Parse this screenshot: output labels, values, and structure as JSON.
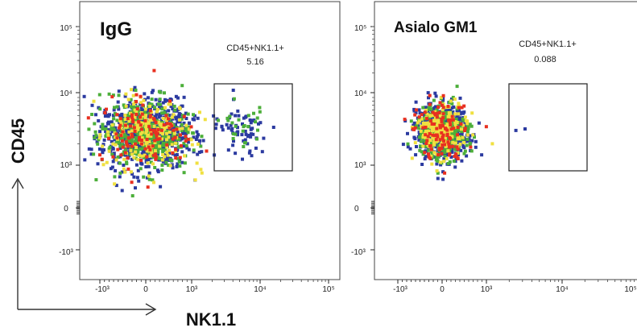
{
  "chart_data": {
    "type": "scatter",
    "xlabel": "NK1.1",
    "ylabel": "CD45",
    "x_scale": "biexponential",
    "y_scale": "biexponential",
    "x_ticks": [
      "-10³",
      "0",
      "10³",
      "10⁴",
      "10⁵"
    ],
    "y_ticks": [
      "10⁵",
      "10⁴",
      "10³",
      "0",
      "-10³"
    ],
    "density_colors": {
      "low": "#2b3aa0",
      "mid": "#4caf3a",
      "high": "#f0e040",
      "peak": "#e83020"
    },
    "panels": [
      {
        "title": "IgG",
        "gate": {
          "label": "CD45+NK1.1+",
          "percent": "5.16",
          "x_range": [
            2000,
            30000
          ],
          "y_range": [
            900,
            12000
          ]
        },
        "populations": [
          {
            "name": "",
            "center": [
              0,
              2800
            ],
            "spread": [
              500,
              0.45
            ],
            "n": 1400
          },
          {
            "name": "",
            "center": [
              5000,
              2900
            ],
            "spread": [
              0.22,
              0.18
            ],
            "n": 90
          }
        ]
      },
      {
        "title": "Asialo GM1",
        "gate": {
          "label": "CD45+NK1.1+",
          "percent": "0.088",
          "x_range": [
            2000,
            30000
          ],
          "y_range": [
            900,
            12000
          ]
        },
        "populations": [
          {
            "name": "",
            "center": [
              0,
              3000
            ],
            "spread": [
              280,
              0.35
            ],
            "n": 1300
          },
          {
            "name": "",
            "center": [
              3000,
              3100
            ],
            "spread": [
              0.05,
              0.03
            ],
            "n": 2
          }
        ]
      }
    ]
  }
}
